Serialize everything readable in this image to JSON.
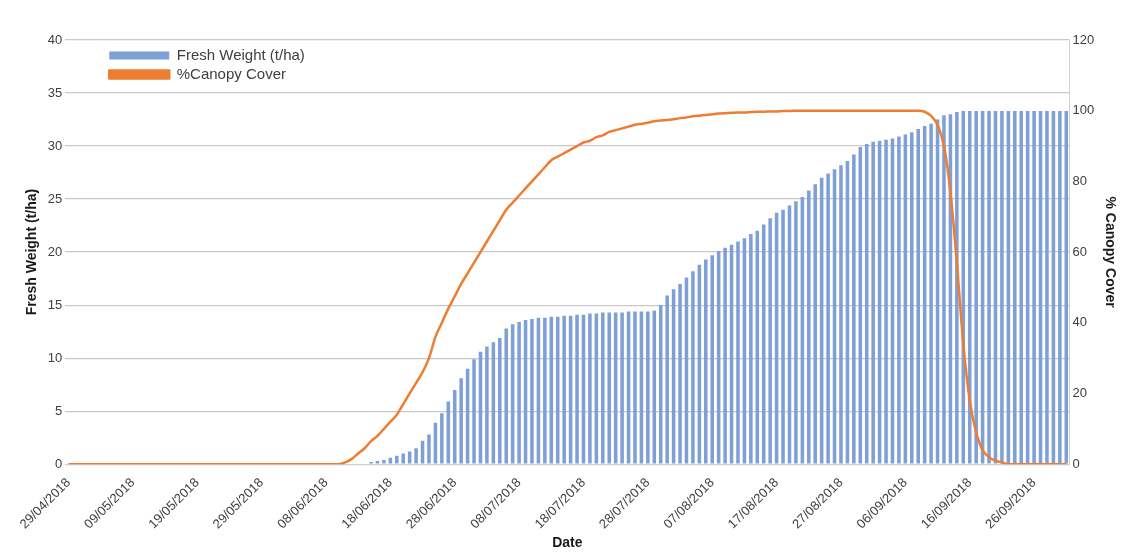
{
  "chart_data": {
    "type": "bar",
    "xlabel": "Date",
    "ylabel": "Fresh Weight (t/ha)",
    "y2label": "% Canopy Cover",
    "categories": [
      "29/04/2018",
      null,
      null,
      null,
      null,
      null,
      null,
      null,
      null,
      null,
      "09/05/2018",
      null,
      null,
      null,
      null,
      null,
      null,
      null,
      null,
      null,
      "19/05/2018",
      null,
      null,
      null,
      null,
      null,
      null,
      null,
      null,
      null,
      "29/05/2018",
      null,
      null,
      null,
      null,
      null,
      null,
      null,
      null,
      null,
      "08/06/2018",
      null,
      null,
      null,
      null,
      null,
      null,
      null,
      null,
      null,
      "18/06/2018",
      null,
      null,
      null,
      null,
      null,
      null,
      null,
      null,
      null,
      "28/06/2018",
      null,
      null,
      null,
      null,
      null,
      null,
      null,
      null,
      null,
      "08/07/2018",
      null,
      null,
      null,
      null,
      null,
      null,
      null,
      null,
      null,
      "18/07/2018",
      null,
      null,
      null,
      null,
      null,
      null,
      null,
      null,
      null,
      "28/07/2018",
      null,
      null,
      null,
      null,
      null,
      null,
      null,
      null,
      null,
      "07/08/2018",
      null,
      null,
      null,
      null,
      null,
      null,
      null,
      null,
      null,
      "17/08/2018",
      null,
      null,
      null,
      null,
      null,
      null,
      null,
      null,
      null,
      "27/08/2018",
      null,
      null,
      null,
      null,
      null,
      null,
      null,
      null,
      null,
      "06/09/2018",
      null,
      null,
      null,
      null,
      null,
      null,
      null,
      null,
      null,
      "16/09/2018",
      null,
      null,
      null,
      null,
      null,
      null,
      null,
      null,
      null,
      "26/09/2018",
      null,
      null,
      null,
      null,
      null
    ],
    "series": [
      {
        "name": "Fresh Weight (t/ha)",
        "color": "#7f9fd8",
        "values": [
          0,
          0,
          0,
          0,
          0,
          0,
          0,
          0,
          0,
          0,
          0,
          0,
          0,
          0,
          0,
          0,
          0,
          0,
          0,
          0,
          0,
          0,
          0,
          0,
          0,
          0,
          0,
          0,
          0,
          0,
          0,
          0,
          0,
          0,
          0,
          0,
          0,
          0,
          0,
          0,
          0,
          0,
          0,
          0,
          0,
          0,
          0,
          0.2,
          0.3,
          0.4,
          0.6,
          0.8,
          1.0,
          1.2,
          1.5,
          2.2,
          2.8,
          3.9,
          4.8,
          5.9,
          7.0,
          8.1,
          9.0,
          9.9,
          10.6,
          11.1,
          11.5,
          11.9,
          12.8,
          13.2,
          13.4,
          13.6,
          13.7,
          13.8,
          13.8,
          13.9,
          13.9,
          14.0,
          14.0,
          14.1,
          14.1,
          14.2,
          14.2,
          14.3,
          14.3,
          14.3,
          14.3,
          14.4,
          14.4,
          14.4,
          14.4,
          14.5,
          15.0,
          15.9,
          16.5,
          17.0,
          17.6,
          18.2,
          18.8,
          19.3,
          19.7,
          20.1,
          20.4,
          20.7,
          21.0,
          21.3,
          21.7,
          22.0,
          22.6,
          23.2,
          23.7,
          24.0,
          24.4,
          24.8,
          25.2,
          25.8,
          26.4,
          27.0,
          27.4,
          27.8,
          28.2,
          28.6,
          29.2,
          29.9,
          30.2,
          30.4,
          30.5,
          30.6,
          30.7,
          30.9,
          31.1,
          31.3,
          31.6,
          31.9,
          32.1,
          32.5,
          32.9,
          33.0,
          33.2,
          33.3,
          33.3,
          33.3,
          33.3,
          33.3,
          33.3,
          33.3,
          33.3,
          33.3,
          33.3,
          33.3,
          33.3,
          33.3,
          33.3,
          33.3,
          33.3,
          33.3
        ]
      },
      {
        "name": "%Canopy Cover",
        "type": "line",
        "axis": "y2",
        "color": "#ed7d31",
        "values": [
          0,
          0,
          0,
          0,
          0,
          0,
          0,
          0,
          0,
          0,
          0,
          0,
          0,
          0,
          0,
          0,
          0,
          0,
          0,
          0,
          0,
          0,
          0,
          0,
          0,
          0,
          0,
          0,
          0,
          0,
          0,
          0,
          0,
          0,
          0,
          0,
          0,
          0,
          0,
          0,
          0,
          0,
          0,
          0.5,
          1.5,
          3,
          4.5,
          6.5,
          8,
          10,
          12,
          14,
          17,
          20,
          23,
          26,
          30,
          36,
          40,
          44,
          47.5,
          51,
          54,
          57,
          60,
          63,
          66,
          69,
          72,
          74,
          76,
          78,
          80,
          82,
          84,
          86,
          87,
          88,
          89,
          90,
          91,
          91.5,
          92.5,
          93,
          94,
          94.5,
          95,
          95.5,
          96,
          96.3,
          96.6,
          97,
          97.2,
          97.4,
          97.6,
          97.9,
          98.1,
          98.4,
          98.6,
          98.8,
          99,
          99.2,
          99.3,
          99.4,
          99.5,
          99.5,
          99.6,
          99.7,
          99.7,
          99.8,
          99.8,
          99.9,
          99.9,
          100,
          100,
          100,
          100,
          100,
          100,
          100,
          100,
          100,
          100,
          100,
          100,
          100,
          100,
          100,
          100,
          100,
          100,
          100,
          100,
          99.7,
          98.5,
          96,
          90,
          77,
          57,
          34,
          18,
          9,
          4,
          2,
          1,
          0.5,
          0,
          0,
          0,
          0,
          0,
          0,
          0,
          0,
          0,
          0
        ]
      }
    ],
    "ylim": [
      0,
      40
    ],
    "yticks": [
      0,
      5,
      10,
      15,
      20,
      25,
      30,
      35,
      40
    ],
    "y2lim": [
      0,
      120
    ],
    "y2ticks": [
      0,
      20,
      40,
      60,
      80,
      100,
      120
    ],
    "grid": "y",
    "legend": "top left"
  }
}
